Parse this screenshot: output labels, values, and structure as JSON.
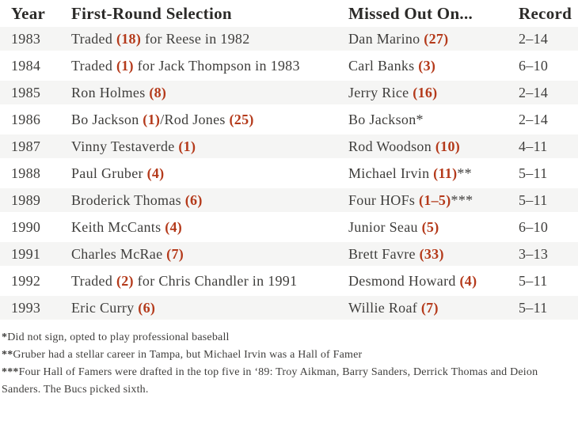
{
  "colors": {
    "accent": "#b43a1b",
    "stripe": "#f5f5f4",
    "text": "#3f3e3c",
    "heading": "#2b2a28",
    "background": "#ffffff"
  },
  "table": {
    "columns": [
      "Year",
      "First-Round Selection",
      "Missed Out On...",
      "Record"
    ],
    "rows": [
      {
        "year": "1983",
        "striped": true,
        "selection": [
          {
            "text": "Traded "
          },
          {
            "text": "(18)",
            "style": "accent"
          },
          {
            "text": " for Reese in 1982"
          }
        ],
        "missed": [
          {
            "text": "Dan Marino "
          },
          {
            "text": "(27)",
            "style": "accent"
          }
        ],
        "record": "2–14"
      },
      {
        "year": "1984",
        "striped": false,
        "selection": [
          {
            "text": "Traded "
          },
          {
            "text": "(1)",
            "style": "accent"
          },
          {
            "text": " for Jack Thompson in 1983"
          }
        ],
        "missed": [
          {
            "text": "Carl Banks "
          },
          {
            "text": "(3)",
            "style": "accent"
          }
        ],
        "record": "6–10"
      },
      {
        "year": "1985",
        "striped": true,
        "selection": [
          {
            "text": "Ron Holmes "
          },
          {
            "text": "(8)",
            "style": "accent"
          }
        ],
        "missed": [
          {
            "text": "Jerry Rice "
          },
          {
            "text": "(16)",
            "style": "accent"
          }
        ],
        "record": "2–14"
      },
      {
        "year": "1986",
        "striped": false,
        "selection": [
          {
            "text": "Bo Jackson "
          },
          {
            "text": "(1)",
            "style": "accent"
          },
          {
            "text": "/Rod Jones "
          },
          {
            "text": "(25)",
            "style": "accent"
          }
        ],
        "missed": [
          {
            "text": "Bo Jackson*"
          }
        ],
        "record": "2–14"
      },
      {
        "year": "1987",
        "striped": true,
        "selection": [
          {
            "text": "Vinny Testaverde "
          },
          {
            "text": "(1)",
            "style": "accent"
          }
        ],
        "missed": [
          {
            "text": "Rod Woodson "
          },
          {
            "text": "(10)",
            "style": "accent"
          }
        ],
        "record": "4–11"
      },
      {
        "year": "1988",
        "striped": false,
        "selection": [
          {
            "text": "Paul Gruber "
          },
          {
            "text": "(4)",
            "style": "accent"
          }
        ],
        "missed": [
          {
            "text": "Michael Irvin "
          },
          {
            "text": "(11)",
            "style": "accent"
          },
          {
            "text": "**"
          }
        ],
        "record": "5–11"
      },
      {
        "year": "1989",
        "striped": true,
        "selection": [
          {
            "text": "Broderick Thomas "
          },
          {
            "text": "(6)",
            "style": "accent"
          }
        ],
        "missed": [
          {
            "text": "Four HOFs "
          },
          {
            "text": "(1–5)",
            "style": "accent"
          },
          {
            "text": "***"
          }
        ],
        "record": "5–11"
      },
      {
        "year": "1990",
        "striped": false,
        "selection": [
          {
            "text": "Keith McCants "
          },
          {
            "text": "(4)",
            "style": "accent"
          }
        ],
        "missed": [
          {
            "text": "Junior Seau "
          },
          {
            "text": "(5)",
            "style": "accent"
          }
        ],
        "record": "6–10"
      },
      {
        "year": "1991",
        "striped": true,
        "selection": [
          {
            "text": "Charles McRae "
          },
          {
            "text": "(7)",
            "style": "accent"
          }
        ],
        "missed": [
          {
            "text": "Brett Favre "
          },
          {
            "text": "(33)",
            "style": "accent"
          }
        ],
        "record": "3–13"
      },
      {
        "year": "1992",
        "striped": false,
        "selection": [
          {
            "text": "Traded "
          },
          {
            "text": "(2)",
            "style": "accent"
          },
          {
            "text": " for Chris Chandler in 1991"
          }
        ],
        "missed": [
          {
            "text": "Desmond Howard "
          },
          {
            "text": "(4)",
            "style": "accent"
          }
        ],
        "record": "5–11"
      },
      {
        "year": "1993",
        "striped": true,
        "selection": [
          {
            "text": "Eric Curry "
          },
          {
            "text": "(6)",
            "style": "accent"
          }
        ],
        "missed": [
          {
            "text": "Willie Roaf "
          },
          {
            "text": "(7)",
            "style": "accent"
          }
        ],
        "record": "5–11"
      }
    ]
  },
  "footnotes": [
    [
      {
        "text": "*",
        "style": "marker"
      },
      {
        "text": "Did not sign, opted to play professional baseball"
      }
    ],
    [
      {
        "text": "**",
        "style": "marker"
      },
      {
        "text": "Gruber had a stellar career in Tampa, but Michael Irvin was a Hall of Famer"
      }
    ],
    [
      {
        "text": "***",
        "style": "marker"
      },
      {
        "text": "Four Hall of Famers were drafted in the top five in ‘89: Troy Aikman, Barry Sanders, Derrick Thomas and Deion Sanders. The Bucs picked sixth."
      }
    ]
  ]
}
